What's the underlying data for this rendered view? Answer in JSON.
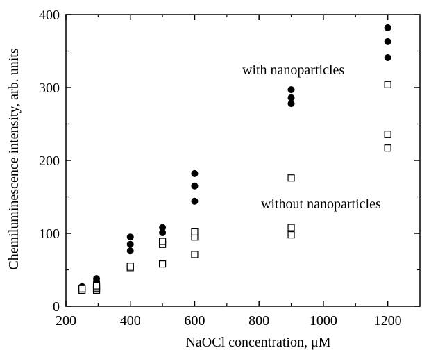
{
  "chart_data": {
    "type": "scatter",
    "title": "",
    "xlabel": "NaOCl concentration, μM",
    "ylabel": "Chemiluminescence intensity, arb. units",
    "xlim": [
      200,
      1300
    ],
    "ylim": [
      0,
      400
    ],
    "xticks": [
      200,
      400,
      600,
      800,
      1000,
      1200
    ],
    "yticks": [
      0,
      100,
      200,
      300,
      400
    ],
    "grid": false,
    "legend": "none",
    "series": [
      {
        "label": "with nanoparticles",
        "marker": "filled-circle",
        "color": "#000000",
        "points": [
          {
            "x": 250,
            "y": 25
          },
          {
            "x": 250,
            "y": 27
          },
          {
            "x": 295,
            "y": 29
          },
          {
            "x": 295,
            "y": 34
          },
          {
            "x": 295,
            "y": 38
          },
          {
            "x": 400,
            "y": 76
          },
          {
            "x": 400,
            "y": 85
          },
          {
            "x": 400,
            "y": 95
          },
          {
            "x": 500,
            "y": 89
          },
          {
            "x": 500,
            "y": 101
          },
          {
            "x": 500,
            "y": 108
          },
          {
            "x": 600,
            "y": 144
          },
          {
            "x": 600,
            "y": 165
          },
          {
            "x": 600,
            "y": 182
          },
          {
            "x": 900,
            "y": 278
          },
          {
            "x": 900,
            "y": 286
          },
          {
            "x": 900,
            "y": 297
          },
          {
            "x": 1200,
            "y": 341
          },
          {
            "x": 1200,
            "y": 363
          },
          {
            "x": 1200,
            "y": 382
          }
        ]
      },
      {
        "label": "without nanoparticles",
        "marker": "open-square",
        "color": "#000000",
        "points": [
          {
            "x": 250,
            "y": 22
          },
          {
            "x": 250,
            "y": 24
          },
          {
            "x": 295,
            "y": 22
          },
          {
            "x": 295,
            "y": 25
          },
          {
            "x": 295,
            "y": 28
          },
          {
            "x": 400,
            "y": 53
          },
          {
            "x": 400,
            "y": 55
          },
          {
            "x": 500,
            "y": 58
          },
          {
            "x": 500,
            "y": 85
          },
          {
            "x": 500,
            "y": 89
          },
          {
            "x": 600,
            "y": 71
          },
          {
            "x": 600,
            "y": 95
          },
          {
            "x": 600,
            "y": 102
          },
          {
            "x": 900,
            "y": 98
          },
          {
            "x": 900,
            "y": 108
          },
          {
            "x": 900,
            "y": 176
          },
          {
            "x": 1200,
            "y": 217
          },
          {
            "x": 1200,
            "y": 236
          },
          {
            "x": 1200,
            "y": 304
          }
        ]
      }
    ]
  }
}
